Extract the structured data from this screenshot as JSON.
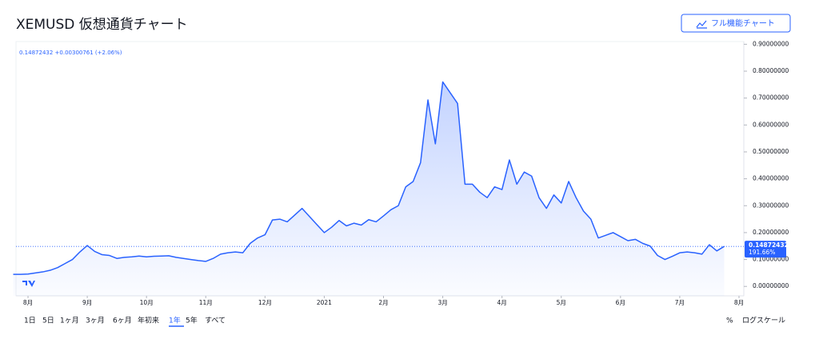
{
  "chart_data": {
    "type": "line",
    "title": "XEMUSD 仮想通貨チャート",
    "legend_text": "0.14872432 +0.00300761 (+2.06%)",
    "last_change_label": "191.66%",
    "categories": [
      "",
      "",
      "8月",
      "",
      "",
      "",
      "",
      "",
      "",
      "",
      "9月",
      "",
      "",
      "",
      "",
      "",
      "",
      "",
      "10月",
      "",
      "",
      "",
      "",
      "",
      "",
      "",
      "11月",
      "",
      "",
      "",
      "",
      "",
      "",
      "",
      "12月",
      "",
      "",
      "",
      "",
      "",
      "",
      "",
      "2021",
      "",
      "",
      "",
      "",
      "",
      "",
      "",
      "2月",
      "",
      "",
      "",
      "",
      "",
      "",
      "",
      "3月",
      "",
      "",
      "",
      "",
      "",
      "",
      "",
      "4月",
      "",
      "",
      "",
      "",
      "",
      "",
      "",
      "5月",
      "",
      "",
      "",
      "",
      "",
      "",
      "",
      "6月",
      "",
      "",
      "",
      "",
      "",
      "",
      "",
      "7月",
      "",
      "",
      "",
      "",
      "",
      "",
      "",
      "8月"
    ],
    "series": [
      {
        "name": "XEMUSD",
        "color": "#2962ff",
        "values": [
          0.045,
          0.045,
          0.046,
          0.05,
          0.054,
          0.06,
          0.07,
          0.085,
          0.1,
          0.128,
          0.152,
          0.13,
          0.118,
          0.115,
          0.104,
          0.108,
          0.11,
          0.113,
          0.11,
          0.112,
          0.113,
          0.114,
          0.108,
          0.104,
          0.1,
          0.096,
          0.093,
          0.104,
          0.12,
          0.125,
          0.128,
          0.125,
          0.16,
          0.18,
          0.192,
          0.247,
          0.25,
          0.24,
          0.265,
          0.29,
          0.26,
          0.23,
          0.2,
          0.22,
          0.245,
          0.225,
          0.235,
          0.228,
          0.248,
          0.24,
          0.262,
          0.285,
          0.3,
          0.37,
          0.39,
          0.46,
          0.693,
          0.53,
          0.76,
          0.72,
          0.68,
          0.38,
          0.38,
          0.35,
          0.33,
          0.37,
          0.36,
          0.47,
          0.38,
          0.425,
          0.41,
          0.33,
          0.29,
          0.34,
          0.31,
          0.39,
          0.33,
          0.28,
          0.25,
          0.18,
          0.19,
          0.2,
          0.185,
          0.17,
          0.175,
          0.16,
          0.15,
          0.115,
          0.1,
          0.112,
          0.125,
          0.128,
          0.125,
          0.12,
          0.155,
          0.132,
          0.14872432,
          null,
          null
        ]
      }
    ],
    "ylim": [
      -0.035,
      0.91
    ],
    "yticks": [
      {
        "value": 0,
        "label": "0.00000000"
      },
      {
        "value": 0.1,
        "label": "0.10000000"
      },
      {
        "value": 0.2,
        "label": "0.20000000"
      },
      {
        "value": 0.3,
        "label": "0.30000000"
      },
      {
        "value": 0.4,
        "label": "0.40000000"
      },
      {
        "value": 0.5,
        "label": "0.50000000"
      },
      {
        "value": 0.6,
        "label": "0.60000000"
      },
      {
        "value": 0.7,
        "label": "0.70000000"
      },
      {
        "value": 0.8,
        "label": "0.80000000"
      },
      {
        "value": 0.9,
        "label": "0.90000000"
      }
    ],
    "grid": false
  },
  "toolbar": {
    "full_chart_button": "フル機能チャート",
    "range_buttons": [
      "1日",
      "5日",
      "1ヶ月",
      "3ヶ月",
      "6ヶ月",
      "年初来",
      "1年",
      "5年",
      "すべて"
    ],
    "active_range": 6,
    "percent": "%",
    "log_scale": "ログスケール"
  }
}
